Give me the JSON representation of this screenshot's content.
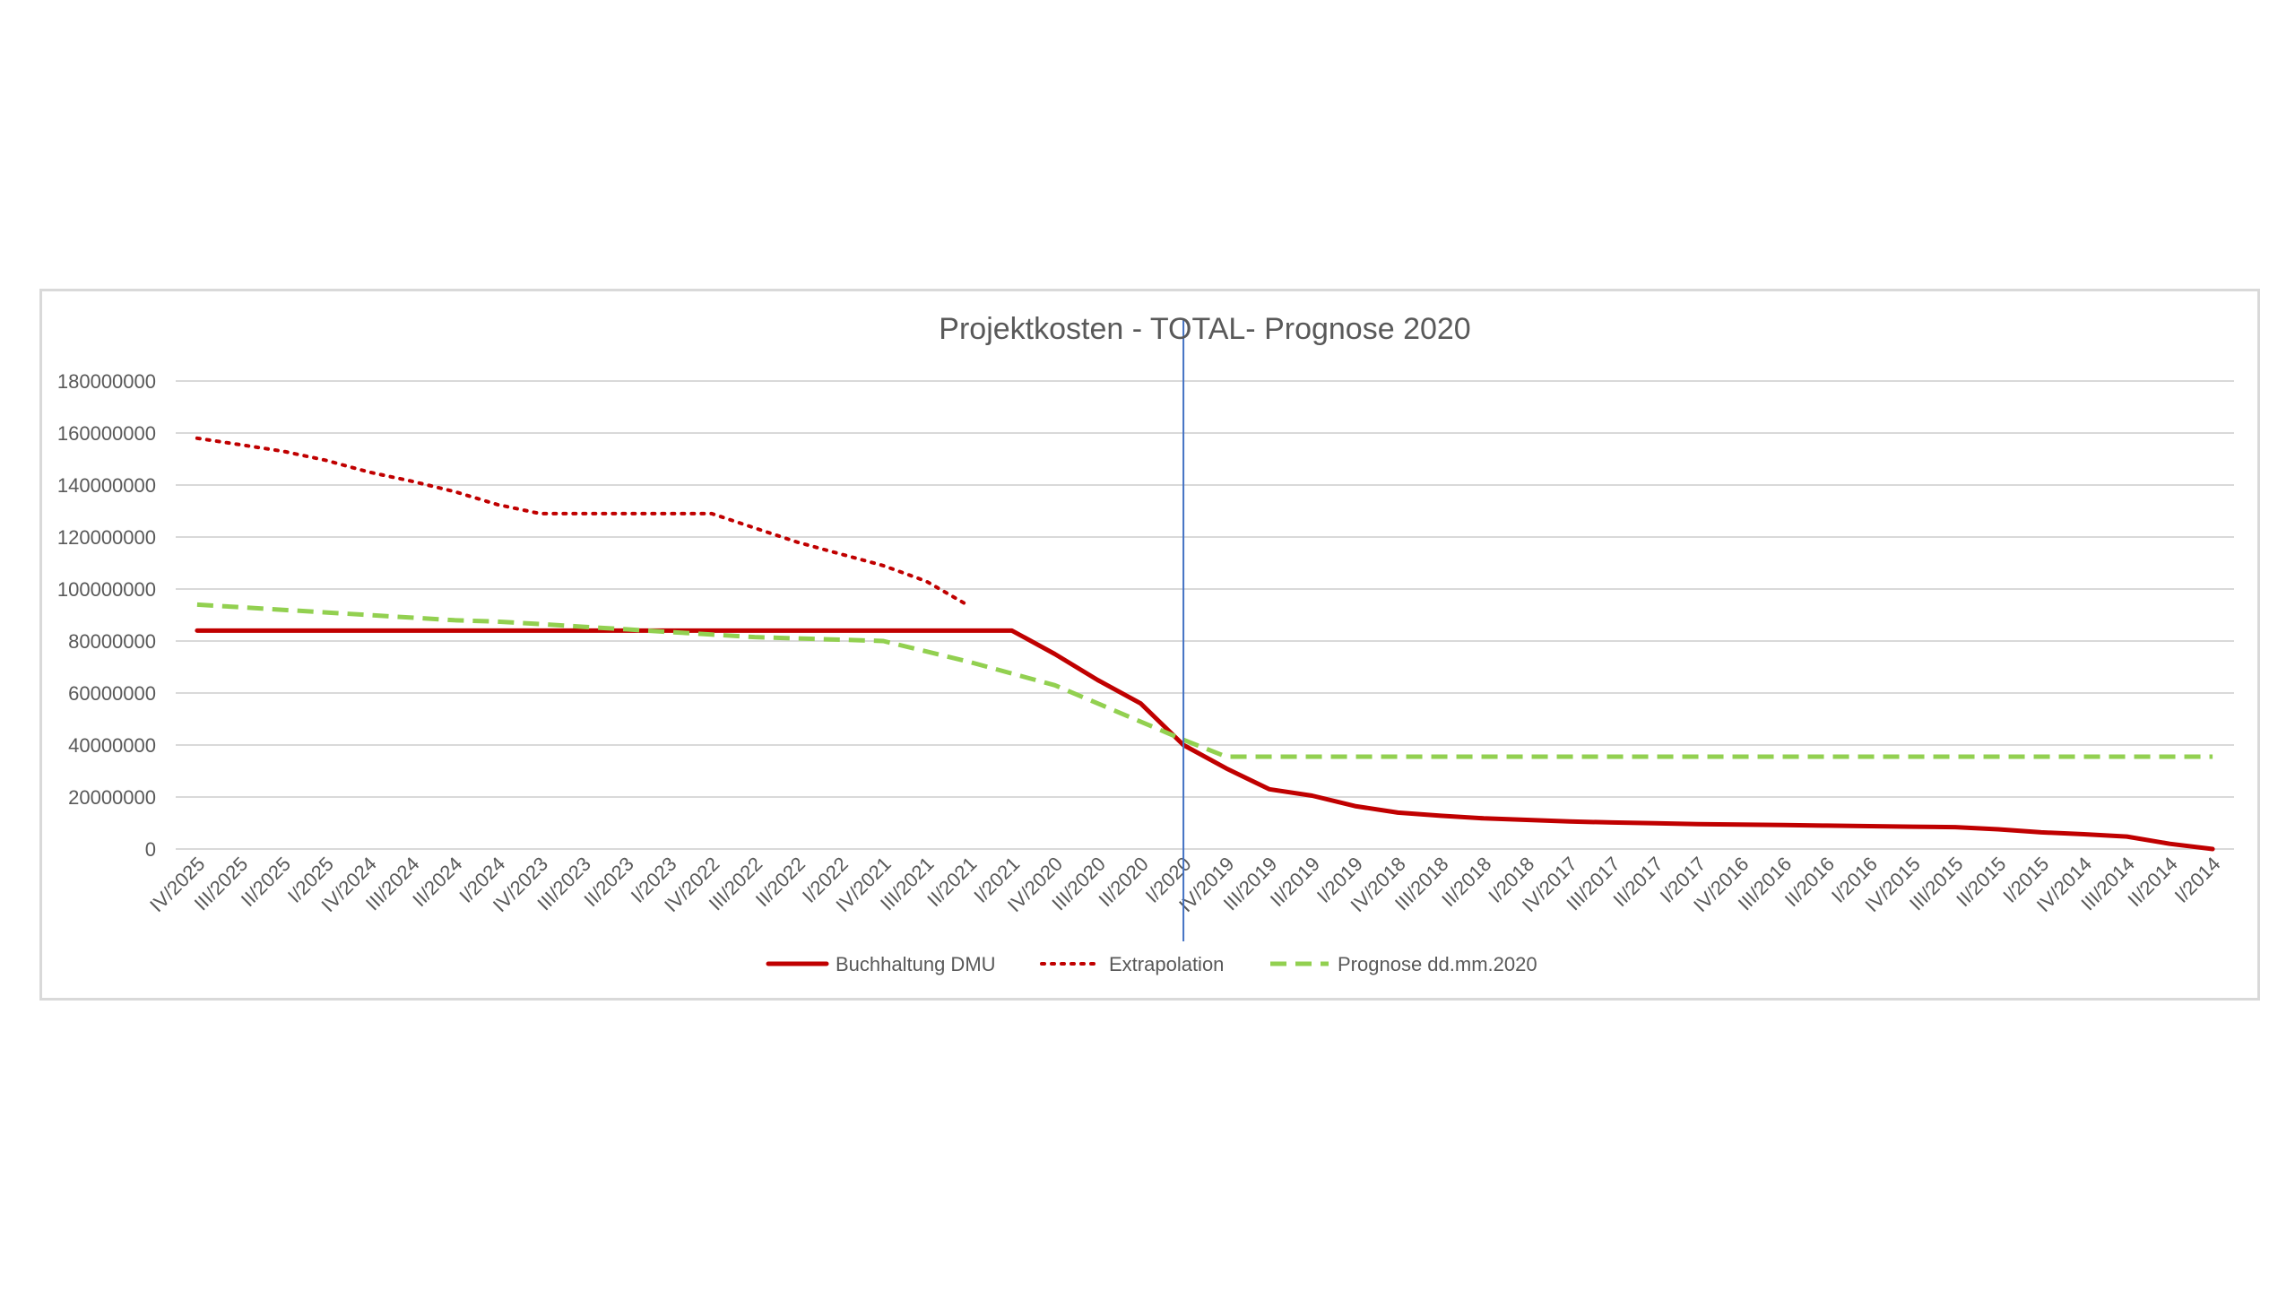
{
  "chart_data": {
    "type": "line",
    "title": "Projektkosten - TOTAL- Prognose 2020",
    "xlabel": "",
    "ylabel": "",
    "ylim": [
      0,
      180000000
    ],
    "yticks": [
      "0",
      "20000000",
      "40000000",
      "60000000",
      "80000000",
      "100000000",
      "120000000",
      "140000000",
      "160000000",
      "180000000"
    ],
    "grid": true,
    "legend_position": "bottom",
    "marker_line_category": "I/2020",
    "categories": [
      "IV/2025",
      "III/2025",
      "II/2025",
      "I/2025",
      "IV/2024",
      "III/2024",
      "II/2024",
      "I/2024",
      "IV/2023",
      "III/2023",
      "II/2023",
      "I/2023",
      "IV/2022",
      "III/2022",
      "II/2022",
      "I/2022",
      "IV/2021",
      "III/2021",
      "II/2021",
      "I/2021",
      "IV/2020",
      "III/2020",
      "II/2020",
      "I/2020",
      "IV/2019",
      "III/2019",
      "II/2019",
      "I/2019",
      "IV/2018",
      "III/2018",
      "II/2018",
      "I/2018",
      "IV/2017",
      "III/2017",
      "II/2017",
      "I/2017",
      "IV/2016",
      "III/2016",
      "II/2016",
      "I/2016",
      "IV/2015",
      "III/2015",
      "II/2015",
      "I/2015",
      "IV/2014",
      "III/2014",
      "II/2014",
      "I/2014"
    ],
    "series": [
      {
        "name": "Buchhaltung DMU",
        "color": "#c00000",
        "style": "solid",
        "values": [
          84000000,
          84000000,
          84000000,
          84000000,
          84000000,
          84000000,
          84000000,
          84000000,
          84000000,
          84000000,
          84000000,
          84000000,
          84000000,
          84000000,
          84000000,
          84000000,
          84000000,
          84000000,
          84000000,
          84000000,
          75000000,
          65000000,
          56000000,
          40000000,
          31000000,
          23000000,
          20500000,
          16500000,
          14000000,
          12800000,
          11800000,
          11200000,
          10600000,
          10200000,
          9900000,
          9600000,
          9400000,
          9200000,
          9000000,
          8800000,
          8600000,
          8400000,
          7600000,
          6400000,
          5700000,
          4800000,
          2000000,
          0
        ]
      },
      {
        "name": "Extrapolation",
        "color": "#c00000",
        "style": "dotted",
        "values": [
          158000000,
          155500000,
          153000000,
          149500000,
          145000000,
          141500000,
          137500000,
          132500000,
          129000000,
          129000000,
          129000000,
          129000000,
          129000000,
          123500000,
          118000000,
          113500000,
          109000000,
          103000000,
          93500000,
          null,
          null,
          null,
          null,
          null,
          null,
          null,
          null,
          null,
          null,
          null,
          null,
          null,
          null,
          null,
          null,
          null,
          null,
          null,
          null,
          null,
          null,
          null,
          null,
          null,
          null,
          null,
          null,
          null
        ]
      },
      {
        "name": "Prognose dd.mm.2020",
        "color": "#92d050",
        "style": "dashed",
        "values": [
          94000000,
          93000000,
          92000000,
          91000000,
          90000000,
          89000000,
          88000000,
          87500000,
          86500000,
          85500000,
          84500000,
          83500000,
          82500000,
          81500000,
          81000000,
          80500000,
          80000000,
          76000000,
          72000000,
          67500000,
          63000000,
          56000000,
          49000000,
          42000000,
          35500000,
          35500000,
          35500000,
          35500000,
          35500000,
          35500000,
          35500000,
          35500000,
          35500000,
          35500000,
          35500000,
          35500000,
          35500000,
          35500000,
          35500000,
          35500000,
          35500000,
          35500000,
          35500000,
          35500000,
          35500000,
          35500000,
          35500000,
          35500000
        ]
      }
    ]
  }
}
